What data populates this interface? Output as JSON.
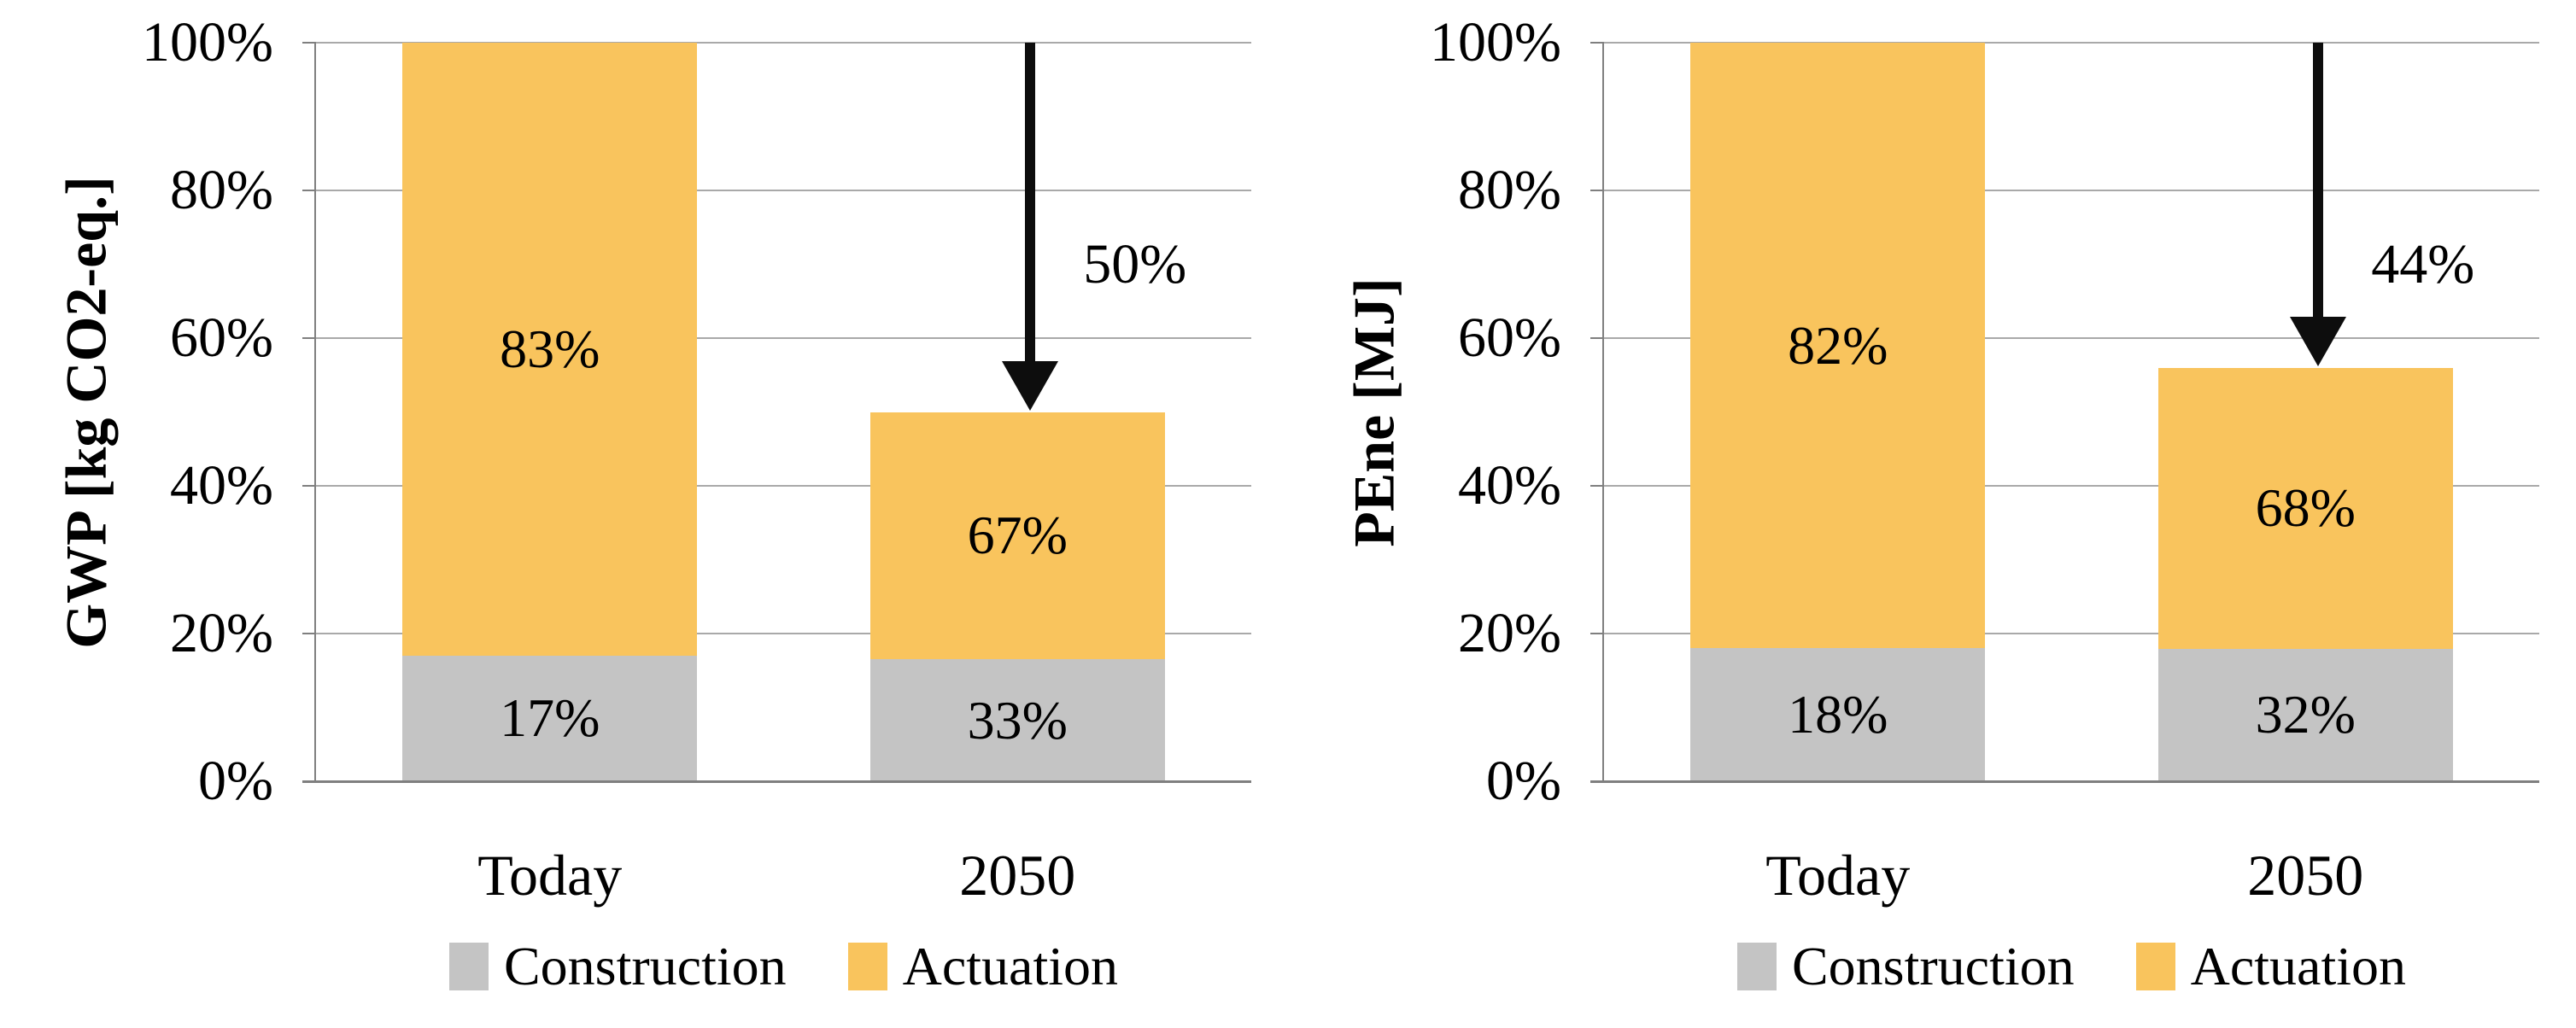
{
  "figure": {
    "background": "#ffffff",
    "colors": {
      "construction": "#C4C4C4",
      "actuation": "#F9C45D",
      "gridline": "#A9A9A9",
      "axis": "#7F7F7F",
      "arrow": "#0d0d0d",
      "text": "#000000"
    }
  },
  "chart_data": [
    {
      "type": "bar",
      "stacked": true,
      "title": "",
      "ylabel": "GWP [kg CO2-eq.]",
      "xlabel": "",
      "categories": [
        "Today",
        "2050"
      ],
      "yticks": [
        "0%",
        "20%",
        "40%",
        "60%",
        "80%",
        "100%"
      ],
      "ylim": [
        0,
        100
      ],
      "grid": true,
      "legend_position": "bottom",
      "bar_totals_pct_of_axis": [
        100,
        50
      ],
      "series": [
        {
          "name": "Construction",
          "color": "#C4C4C4",
          "share_of_bar_pct": [
            17,
            33
          ],
          "labels": [
            "17%",
            "33%"
          ]
        },
        {
          "name": "Actuation",
          "color": "#F9C45D",
          "share_of_bar_pct": [
            83,
            67
          ],
          "labels": [
            "83%",
            "67%"
          ]
        }
      ],
      "annotation": {
        "type": "arrow-down",
        "label": "50%",
        "category_index": 1,
        "from_pct": 100,
        "to_pct": 50,
        "label_center_pct": 70
      }
    },
    {
      "type": "bar",
      "stacked": true,
      "title": "",
      "ylabel": "PEne [MJ]",
      "xlabel": "",
      "categories": [
        "Today",
        "2050"
      ],
      "yticks": [
        "0%",
        "20%",
        "40%",
        "60%",
        "80%",
        "100%"
      ],
      "ylim": [
        0,
        100
      ],
      "grid": true,
      "legend_position": "bottom",
      "bar_totals_pct_of_axis": [
        100,
        56
      ],
      "series": [
        {
          "name": "Construction",
          "color": "#C4C4C4",
          "share_of_bar_pct": [
            18,
            32
          ],
          "labels": [
            "18%",
            "32%"
          ]
        },
        {
          "name": "Actuation",
          "color": "#F9C45D",
          "share_of_bar_pct": [
            82,
            68
          ],
          "labels": [
            "82%",
            "68%"
          ]
        }
      ],
      "annotation": {
        "type": "arrow-down",
        "label": "44%",
        "category_index": 1,
        "from_pct": 100,
        "to_pct": 56,
        "label_center_pct": 70
      }
    }
  ]
}
